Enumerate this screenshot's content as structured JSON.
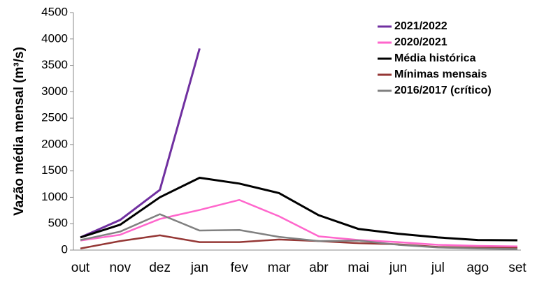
{
  "chart_data": {
    "type": "line",
    "y_label": "Vazão média mensal (m³/s)",
    "categories": [
      "out",
      "nov",
      "dez",
      "jan",
      "fev",
      "mar",
      "abr",
      "mai",
      "jun",
      "jul",
      "ago",
      "set"
    ],
    "series": [
      {
        "name": "2021/2022",
        "color": "#7030a0",
        "values": [
          240,
          570,
          1140,
          3820,
          null,
          null,
          null,
          null,
          null,
          null,
          null,
          null
        ]
      },
      {
        "name": "2020/2021",
        "color": "#ff66cc",
        "values": [
          180,
          290,
          590,
          760,
          950,
          640,
          260,
          190,
          150,
          100,
          80,
          70
        ]
      },
      {
        "name": "Média histórica",
        "color": "#000000",
        "values": [
          240,
          480,
          1000,
          1370,
          1260,
          1080,
          660,
          400,
          310,
          240,
          190,
          185
        ]
      },
      {
        "name": "Mínimas mensais",
        "color": "#953735",
        "values": [
          30,
          170,
          280,
          150,
          150,
          200,
          170,
          130,
          110,
          60,
          45,
          40
        ]
      },
      {
        "name": "2016/2017 (crítico)",
        "color": "#808080",
        "values": [
          190,
          350,
          680,
          370,
          380,
          250,
          170,
          180,
          100,
          50,
          30,
          20
        ]
      }
    ],
    "ylim": [
      0,
      4500
    ],
    "yticks": [
      0,
      500,
      1000,
      1500,
      2000,
      2500,
      3000,
      3500,
      4000,
      4500
    ],
    "grid": false,
    "legend": "top-right"
  }
}
